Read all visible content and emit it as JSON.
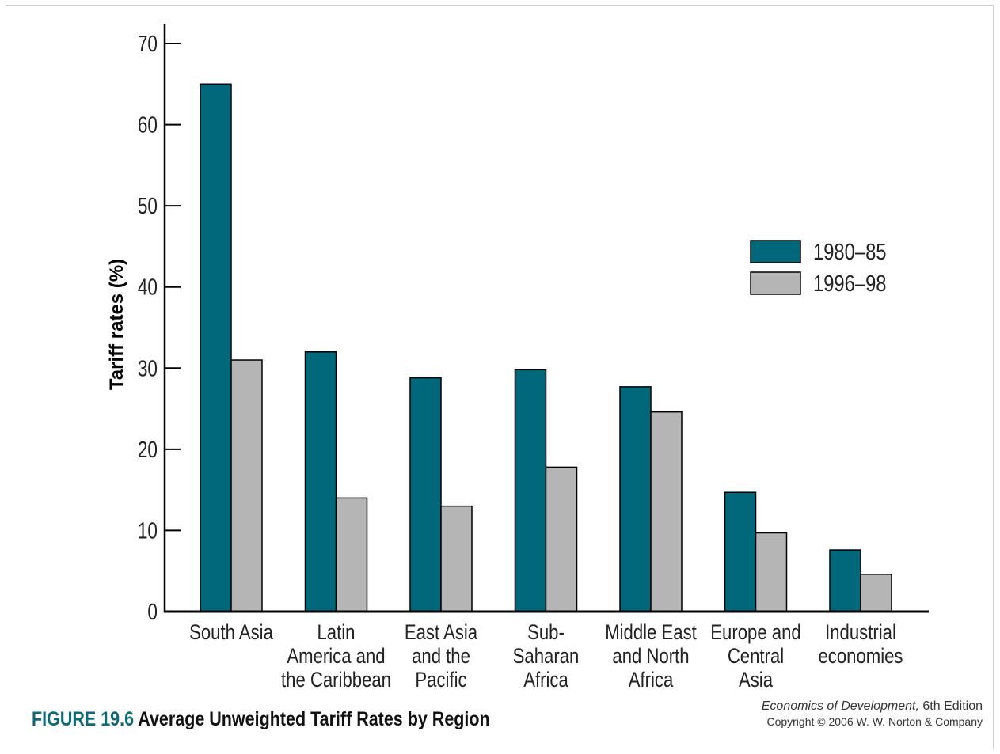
{
  "figure": {
    "number": "FIGURE 19.6",
    "title": "Average Unweighted Tariff Rates by Region"
  },
  "credit": {
    "book_title": "Economics of Development,",
    "edition": "6th Edition",
    "copyright": "Copyright © 2006 W. W. Norton & Company"
  },
  "colors": {
    "series_1980": "#00687a",
    "series_1996": "#b5b5b5",
    "axis": "#000000",
    "caption_accent": "#0e6a76"
  },
  "chart_data": {
    "type": "bar",
    "ylabel": "Tariff rates (%)",
    "xlabel": "",
    "ylim": [
      0,
      70
    ],
    "yticks": [
      0,
      10,
      20,
      30,
      40,
      50,
      60,
      70
    ],
    "grid": false,
    "legend_position": "right",
    "categories": [
      [
        "South Asia"
      ],
      [
        "Latin",
        "America and",
        "the Caribbean"
      ],
      [
        "East Asia",
        "and the",
        "Pacific"
      ],
      [
        "Sub-",
        "Saharan",
        "Africa"
      ],
      [
        "Middle East",
        "and North",
        "Africa"
      ],
      [
        "Europe and",
        "Central",
        "Asia"
      ],
      [
        "Industrial",
        "economies"
      ]
    ],
    "series": [
      {
        "name": "1980–85",
        "values": [
          65,
          32,
          28.8,
          29.8,
          27.7,
          14.7,
          7.6
        ]
      },
      {
        "name": "1996–98",
        "values": [
          31,
          14,
          13,
          17.8,
          24.6,
          9.7,
          4.6
        ]
      }
    ]
  }
}
